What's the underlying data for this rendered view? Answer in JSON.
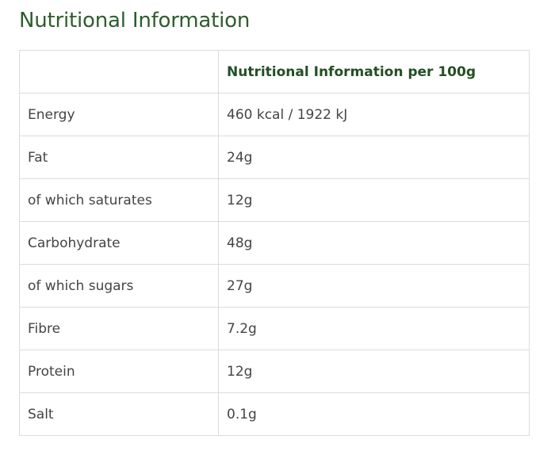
{
  "title": "Nutritional Information",
  "table": {
    "header": [
      "",
      "Nutritional Information per 100g"
    ],
    "rows": [
      {
        "label": "Energy",
        "value": "460 kcal / 1922 kJ"
      },
      {
        "label": "Fat",
        "value": "24g"
      },
      {
        "label": "of which saturates",
        "value": "12g"
      },
      {
        "label": "Carbohydrate",
        "value": "48g"
      },
      {
        "label": "of which sugars",
        "value": "27g"
      },
      {
        "label": "Fibre",
        "value": "7.2g"
      },
      {
        "label": "Protein",
        "value": "12g"
      },
      {
        "label": "Salt",
        "value": "0.1g"
      }
    ]
  },
  "colors": {
    "heading": "#2e5d2e",
    "header_text": "#234f23",
    "body_text": "#444444",
    "border": "#dcdcdc"
  }
}
